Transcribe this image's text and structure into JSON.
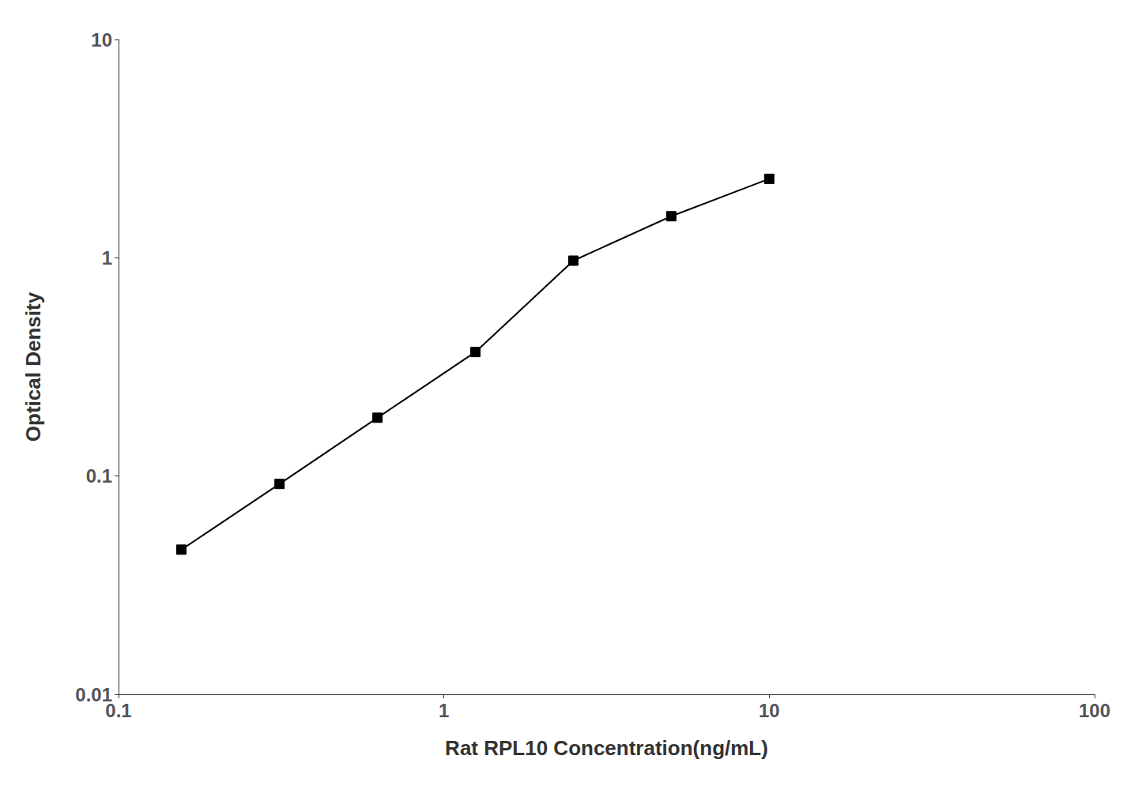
{
  "chart_data": {
    "type": "line",
    "x": [
      0.156,
      0.3125,
      0.625,
      1.25,
      2.5,
      5.0,
      10.0
    ],
    "values": [
      0.046,
      0.092,
      0.185,
      0.37,
      0.97,
      1.55,
      2.3
    ],
    "xlabel": "Rat RPL10 Concentration(ng/mL)",
    "ylabel": "Optical Density",
    "log": true,
    "xlim": [
      0.1,
      100
    ],
    "ylim": [
      0.01,
      10
    ],
    "xticks": [
      0.1,
      1,
      10,
      100
    ],
    "yticks": [
      0.01,
      0.1,
      1,
      10
    ],
    "color": "#000000",
    "marker": "square",
    "grid": false
  }
}
